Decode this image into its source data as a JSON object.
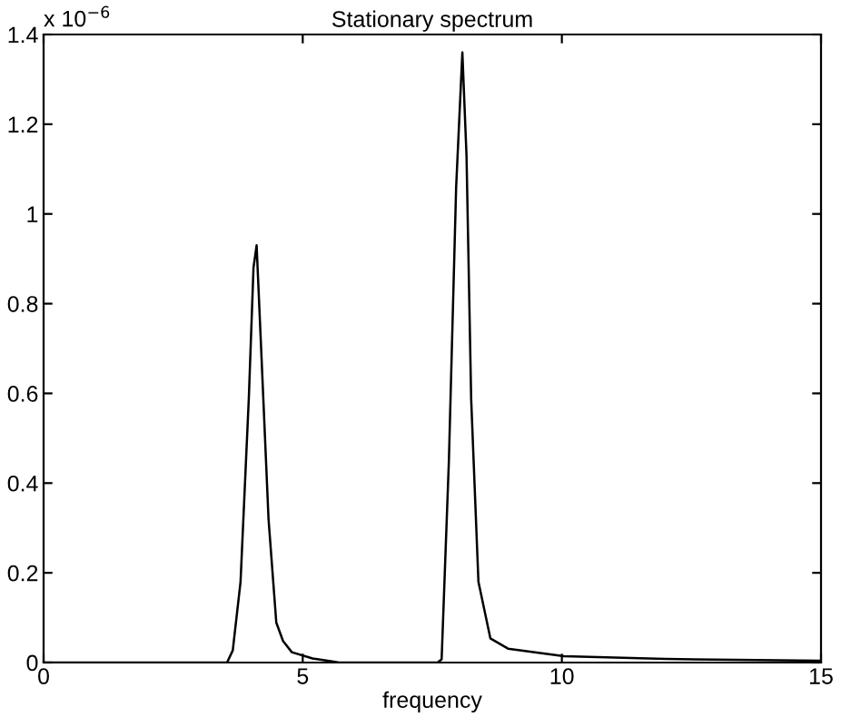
{
  "chart_data": {
    "type": "line",
    "title": "Stationary spectrum",
    "xlabel": "frequency",
    "ylabel": "x 10$^{−6}$",
    "series": [
      {
        "color": "#000000",
        "x": [
          0,
          3.5,
          3.54,
          3.65,
          3.8,
          3.96,
          4.05,
          4.11,
          4.19,
          4.34,
          4.49,
          4.62,
          4.79,
          5.19,
          5.54,
          5.7,
          7.6,
          7.68,
          7.82,
          7.96,
          8.08,
          8.16,
          8.25,
          8.39,
          8.62,
          8.96,
          10.04,
          12,
          15
        ],
        "values": [
          0,
          0,
          0,
          0.027,
          0.18,
          0.59,
          0.88,
          0.93,
          0.72,
          0.32,
          0.089,
          0.048,
          0.023,
          0.009,
          0.003,
          0,
          0,
          0.007,
          0.45,
          1.06,
          1.36,
          1.13,
          0.587,
          0.18,
          0.054,
          0.031,
          0.014,
          0.008,
          0.004
        ]
      }
    ],
    "xlim": [
      0,
      15
    ],
    "xticks": [
      0,
      5,
      10,
      15
    ],
    "ylim": [
      0,
      1.4
    ],
    "yticks": [
      0,
      0.2,
      0.4,
      0.6,
      0.8,
      1,
      1.2,
      1.4
    ],
    "grid": false,
    "legend": false
  }
}
